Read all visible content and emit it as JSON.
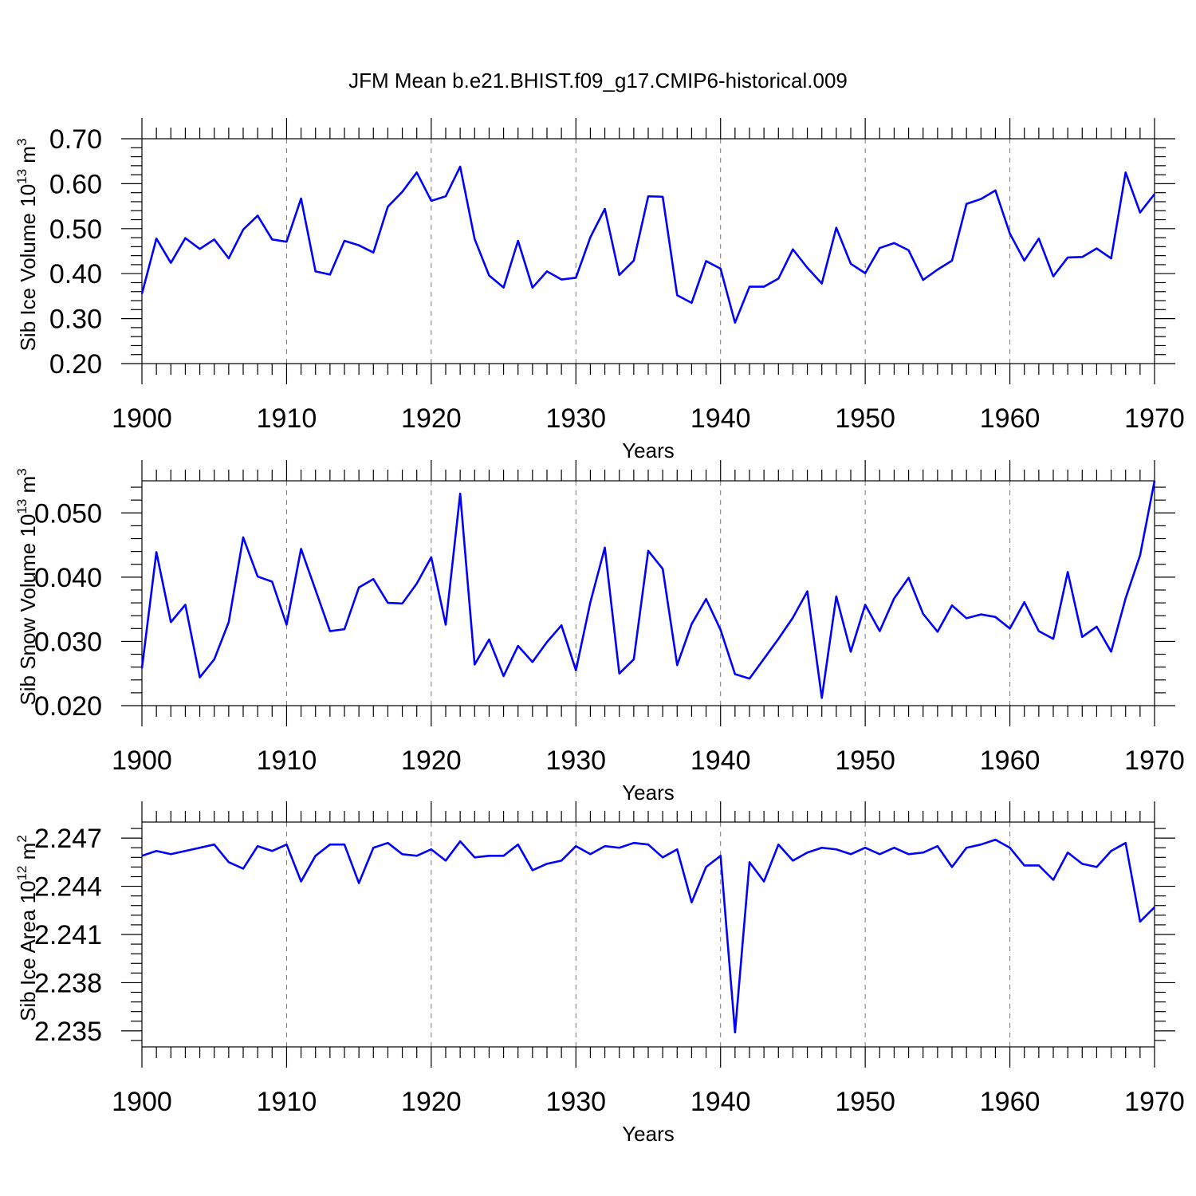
{
  "chart_data": {
    "type": "line",
    "title": "JFM Mean b.e21.BHIST.f09_g17.CMIP6-historical.009",
    "line_color": "#0000ff",
    "x": [
      1900,
      1901,
      1902,
      1903,
      1904,
      1905,
      1906,
      1907,
      1908,
      1909,
      1910,
      1911,
      1912,
      1913,
      1914,
      1915,
      1916,
      1917,
      1918,
      1919,
      1920,
      1921,
      1922,
      1923,
      1924,
      1925,
      1926,
      1927,
      1928,
      1929,
      1930,
      1931,
      1932,
      1933,
      1934,
      1935,
      1936,
      1937,
      1938,
      1939,
      1940,
      1941,
      1942,
      1943,
      1944,
      1945,
      1946,
      1947,
      1948,
      1949,
      1950,
      1951,
      1952,
      1953,
      1954,
      1955,
      1956,
      1957,
      1958,
      1959,
      1960,
      1961,
      1962,
      1963,
      1964,
      1965,
      1966,
      1967,
      1968,
      1969,
      1970
    ],
    "panels": [
      {
        "ylabel_main": "Sib Ice Volume 10",
        "ylabel_exp": "13",
        "ylabel_unit": " m",
        "ylabel_unit_exp": "3",
        "xlabel": "Years",
        "xlim": [
          1900,
          1970
        ],
        "ylim": [
          0.2,
          0.7
        ],
        "yticks": [
          0.2,
          0.3,
          0.4,
          0.5,
          0.6,
          0.7
        ],
        "ytick_labels": [
          "0.20",
          "0.30",
          "0.40",
          "0.50",
          "0.60",
          "0.70"
        ],
        "xtick_labels": [
          "1900",
          "1910",
          "1920",
          "1930",
          "1940",
          "1950",
          "1960",
          "1970"
        ],
        "values": [
          0.355,
          0.478,
          0.424,
          0.479,
          0.455,
          0.476,
          0.434,
          0.498,
          0.529,
          0.476,
          0.471,
          0.567,
          0.405,
          0.398,
          0.473,
          0.463,
          0.447,
          0.549,
          0.582,
          0.625,
          0.562,
          0.572,
          0.638,
          0.477,
          0.396,
          0.369,
          0.473,
          0.369,
          0.405,
          0.387,
          0.391,
          0.481,
          0.544,
          0.397,
          0.429,
          0.572,
          0.571,
          0.352,
          0.335,
          0.428,
          0.411,
          0.291,
          0.371,
          0.371,
          0.389,
          0.454,
          0.413,
          0.378,
          0.502,
          0.422,
          0.401,
          0.457,
          0.468,
          0.452,
          0.386,
          0.409,
          0.429,
          0.555,
          0.566,
          0.585,
          0.489,
          0.429,
          0.478,
          0.394,
          0.436,
          0.437,
          0.456,
          0.434,
          0.625,
          0.536,
          0.577
        ]
      },
      {
        "ylabel_main": "Sib Snow Volume 10",
        "ylabel_exp": "13",
        "ylabel_unit": " m",
        "ylabel_unit_exp": "3",
        "xlabel": "Years",
        "xlim": [
          1900,
          1970
        ],
        "ylim": [
          0.02,
          0.055
        ],
        "yticks": [
          0.02,
          0.03,
          0.04,
          0.05
        ],
        "ytick_labels": [
          "0.020",
          "0.030",
          "0.040",
          "0.050"
        ],
        "xtick_labels": [
          "1900",
          "1910",
          "1920",
          "1930",
          "1940",
          "1950",
          "1960",
          "1970"
        ],
        "values": [
          0.0258,
          0.0439,
          0.033,
          0.0357,
          0.0244,
          0.0272,
          0.033,
          0.0462,
          0.0401,
          0.0393,
          0.0326,
          0.0444,
          0.038,
          0.0316,
          0.0319,
          0.0384,
          0.0397,
          0.036,
          0.0359,
          0.039,
          0.0431,
          0.0326,
          0.053,
          0.0264,
          0.0303,
          0.0246,
          0.0293,
          0.0268,
          0.0299,
          0.0325,
          0.0255,
          0.0361,
          0.0446,
          0.025,
          0.0272,
          0.0441,
          0.0413,
          0.0263,
          0.0327,
          0.0366,
          0.0318,
          0.0249,
          0.0242,
          0.0273,
          0.0304,
          0.0337,
          0.0378,
          0.0212,
          0.037,
          0.0284,
          0.0357,
          0.0316,
          0.0367,
          0.0399,
          0.0343,
          0.0315,
          0.0356,
          0.0336,
          0.0342,
          0.0338,
          0.032,
          0.0361,
          0.0316,
          0.0304,
          0.0408,
          0.0307,
          0.0323,
          0.0284,
          0.0367,
          0.0434,
          0.055
        ]
      },
      {
        "ylabel_main": "Sib Ice Area 10",
        "ylabel_exp": "12",
        "ylabel_unit": " m",
        "ylabel_unit_exp": "2",
        "xlabel": "Years",
        "xlim": [
          1900,
          1970
        ],
        "ylim": [
          2.234,
          2.248
        ],
        "yticks": [
          2.235,
          2.238,
          2.241,
          2.244,
          2.247
        ],
        "ytick_labels": [
          "2.235",
          "2.238",
          "2.241",
          "2.244",
          "2.247"
        ],
        "xtick_labels": [
          "1900",
          "1910",
          "1920",
          "1930",
          "1940",
          "1950",
          "1960",
          "1970"
        ],
        "values": [
          2.2459,
          2.2462,
          2.246,
          2.2462,
          2.2464,
          2.2466,
          2.2455,
          2.2451,
          2.2465,
          2.2462,
          2.2466,
          2.2443,
          2.2459,
          2.2466,
          2.2466,
          2.2442,
          2.2464,
          2.2467,
          2.246,
          2.2459,
          2.2463,
          2.2456,
          2.2468,
          2.2458,
          2.2459,
          2.2459,
          2.2466,
          2.245,
          2.2454,
          2.2456,
          2.2465,
          2.246,
          2.2465,
          2.2464,
          2.2467,
          2.2466,
          2.2458,
          2.2463,
          2.243,
          2.2452,
          2.2459,
          2.2349,
          2.2455,
          2.2443,
          2.2466,
          2.2456,
          2.2461,
          2.2464,
          2.2463,
          2.246,
          2.2464,
          2.246,
          2.2464,
          2.246,
          2.2461,
          2.2465,
          2.2452,
          2.2464,
          2.2466,
          2.2469,
          2.2464,
          2.2453,
          2.2453,
          2.2444,
          2.2461,
          2.2454,
          2.2452,
          2.2462,
          2.2467,
          2.2418,
          2.2427
        ]
      }
    ]
  }
}
